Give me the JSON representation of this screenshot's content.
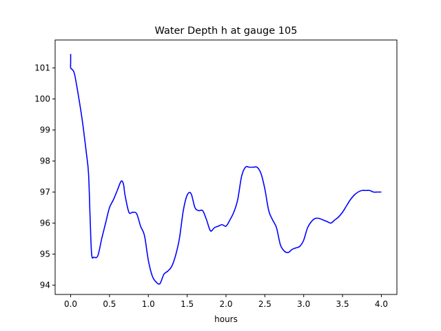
{
  "chart_data": {
    "type": "line",
    "title": "Water Depth h at gauge 105",
    "xlabel": "hours",
    "ylabel": "",
    "xlim": [
      -0.2,
      4.2
    ],
    "ylim": [
      93.7,
      101.9
    ],
    "grid": false,
    "legend": "none",
    "x_ticks": [
      0.0,
      0.5,
      1.0,
      1.5,
      2.0,
      2.5,
      3.0,
      3.5,
      4.0
    ],
    "x_tick_labels": [
      "0.0",
      "0.5",
      "1.0",
      "1.5",
      "2.0",
      "2.5",
      "3.0",
      "3.5",
      "4.0"
    ],
    "y_ticks": [
      94,
      95,
      96,
      97,
      98,
      99,
      100,
      101
    ],
    "y_tick_labels": [
      "94",
      "95",
      "96",
      "97",
      "98",
      "99",
      "100",
      "101"
    ],
    "series": [
      {
        "color": "#0000ff",
        "x": [
          0.0,
          0.0,
          0.0,
          0.02,
          0.05,
          0.1,
          0.15,
          0.2,
          0.23,
          0.25,
          0.27,
          0.3,
          0.35,
          0.4,
          0.45,
          0.5,
          0.55,
          0.6,
          0.65,
          0.68,
          0.7,
          0.75,
          0.8,
          0.85,
          0.9,
          0.95,
          1.0,
          1.05,
          1.1,
          1.15,
          1.2,
          1.25,
          1.3,
          1.35,
          1.4,
          1.45,
          1.5,
          1.55,
          1.6,
          1.65,
          1.7,
          1.75,
          1.8,
          1.85,
          1.9,
          1.95,
          2.0,
          2.05,
          2.1,
          2.15,
          2.2,
          2.25,
          2.3,
          2.35,
          2.4,
          2.45,
          2.5,
          2.55,
          2.6,
          2.65,
          2.7,
          2.75,
          2.8,
          2.85,
          2.9,
          2.95,
          3.0,
          3.05,
          3.1,
          3.15,
          3.2,
          3.25,
          3.3,
          3.35,
          3.4,
          3.45,
          3.5,
          3.55,
          3.6,
          3.65,
          3.7,
          3.75,
          3.8,
          3.85,
          3.9,
          3.95,
          4.0
        ],
        "y": [
          101.45,
          101.2,
          101.0,
          100.95,
          100.8,
          100.1,
          99.3,
          98.3,
          97.6,
          96.2,
          95.0,
          94.9,
          94.95,
          95.5,
          96.0,
          96.5,
          96.75,
          97.05,
          97.35,
          97.25,
          96.9,
          96.35,
          96.35,
          96.3,
          95.9,
          95.6,
          94.8,
          94.3,
          94.1,
          94.05,
          94.35,
          94.45,
          94.6,
          94.95,
          95.5,
          96.4,
          96.9,
          96.95,
          96.5,
          96.4,
          96.4,
          96.1,
          95.75,
          95.85,
          95.9,
          95.95,
          95.9,
          96.1,
          96.35,
          96.75,
          97.5,
          97.8,
          97.8,
          97.8,
          97.8,
          97.6,
          97.1,
          96.4,
          96.1,
          95.85,
          95.3,
          95.1,
          95.05,
          95.15,
          95.2,
          95.25,
          95.45,
          95.85,
          96.05,
          96.15,
          96.15,
          96.1,
          96.05,
          96.0,
          96.1,
          96.2,
          96.35,
          96.55,
          96.75,
          96.9,
          97.0,
          97.05,
          97.05,
          97.05,
          97.0,
          97.0,
          97.0
        ]
      }
    ]
  }
}
